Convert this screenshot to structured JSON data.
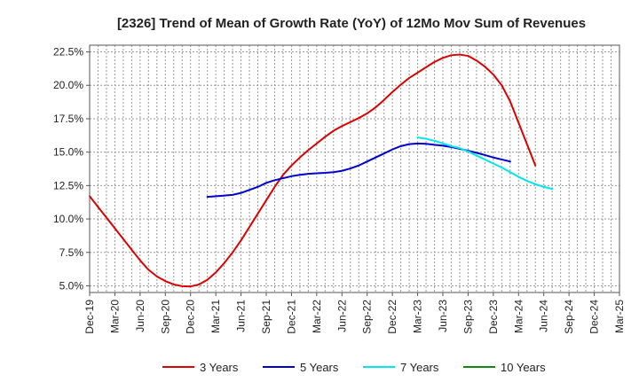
{
  "chart_data": {
    "type": "line",
    "title": "[2326]  Trend of Mean of Growth Rate (YoY) of 12Mo Mov Sum of Revenues",
    "xlabel": "",
    "ylabel": "",
    "ylim": [
      4.5,
      23.0
    ],
    "y_ticks": [
      5.0,
      7.5,
      10.0,
      12.5,
      15.0,
      17.5,
      20.0,
      22.5
    ],
    "y_tick_labels": [
      "5.0%",
      "7.5%",
      "10.0%",
      "12.5%",
      "15.0%",
      "17.5%",
      "20.0%",
      "22.5%"
    ],
    "x_tick_labels": [
      "Dec-19",
      "Mar-20",
      "Jun-20",
      "Sep-20",
      "Dec-20",
      "Mar-21",
      "Jun-21",
      "Sep-21",
      "Dec-21",
      "Mar-22",
      "Jun-22",
      "Sep-22",
      "Dec-22",
      "Mar-23",
      "Jun-23",
      "Sep-23",
      "Dec-23",
      "Mar-24",
      "Jun-24",
      "Sep-24",
      "Dec-24",
      "Mar-25"
    ],
    "grid": true,
    "legend_position": "bottom",
    "series": [
      {
        "name": "3 Years",
        "color": "#dd0000",
        "x": [
          0,
          1,
          2,
          3,
          4,
          5,
          6,
          7,
          8,
          9,
          10,
          11,
          12,
          13,
          14,
          15,
          16,
          17,
          18,
          19,
          20,
          21,
          22,
          23,
          24,
          25,
          26,
          27,
          28,
          29,
          30,
          31,
          32,
          33,
          34,
          35,
          36,
          37,
          38,
          39,
          40,
          41,
          42,
          43,
          44,
          45,
          46,
          47,
          48,
          49,
          50,
          51,
          52,
          53,
          54,
          55,
          56,
          57,
          58,
          59,
          60
        ],
        "values": [
          11.7,
          10.9,
          10.1,
          9.3,
          8.5,
          7.7,
          6.9,
          6.2,
          5.7,
          5.35,
          5.1,
          4.97,
          4.95,
          5.1,
          5.45,
          6.0,
          6.7,
          7.5,
          8.4,
          9.4,
          10.4,
          11.4,
          12.4,
          13.3,
          14.0,
          14.6,
          15.15,
          15.65,
          16.15,
          16.6,
          16.95,
          17.25,
          17.55,
          17.9,
          18.35,
          18.9,
          19.5,
          20.05,
          20.55,
          20.95,
          21.35,
          21.75,
          22.05,
          22.25,
          22.3,
          22.2,
          21.85,
          21.4,
          20.8,
          20.0,
          18.8,
          17.2,
          15.6,
          14.0,
          null,
          null,
          null,
          null,
          null,
          null,
          null
        ]
      },
      {
        "name": "5 Years",
        "color": "#0000cc",
        "x": [
          14,
          17,
          18,
          20,
          21,
          22,
          23,
          24,
          25,
          26,
          27,
          28,
          29,
          30,
          31,
          32,
          33,
          34,
          35,
          36,
          37,
          38,
          39,
          40,
          41,
          42,
          43,
          44,
          45,
          46,
          47,
          48,
          49,
          50,
          51,
          52,
          53
        ],
        "values": [
          11.65,
          11.8,
          11.95,
          12.4,
          12.7,
          12.9,
          13.05,
          13.2,
          13.3,
          13.38,
          13.42,
          13.45,
          13.5,
          13.6,
          13.78,
          14.0,
          14.3,
          14.6,
          14.9,
          15.2,
          15.45,
          15.6,
          15.65,
          15.62,
          15.55,
          15.48,
          15.38,
          15.25,
          15.1,
          14.95,
          14.78,
          14.6,
          14.45,
          14.3,
          null,
          null,
          null
        ]
      },
      {
        "name": "7 Years",
        "color": "#00e5ee",
        "x": [
          39,
          40,
          41,
          42,
          43,
          44,
          45,
          46,
          47,
          48,
          49,
          50,
          51,
          52,
          53,
          54,
          55,
          56,
          57,
          58,
          59
        ],
        "values": [
          16.1,
          16.0,
          15.85,
          15.65,
          15.45,
          15.3,
          15.05,
          14.75,
          14.45,
          14.15,
          13.85,
          13.5,
          13.15,
          12.85,
          12.6,
          12.4,
          12.25,
          null,
          null,
          null,
          null
        ]
      },
      {
        "name": "10 Years",
        "color": "#118811",
        "x": [],
        "values": []
      }
    ]
  }
}
